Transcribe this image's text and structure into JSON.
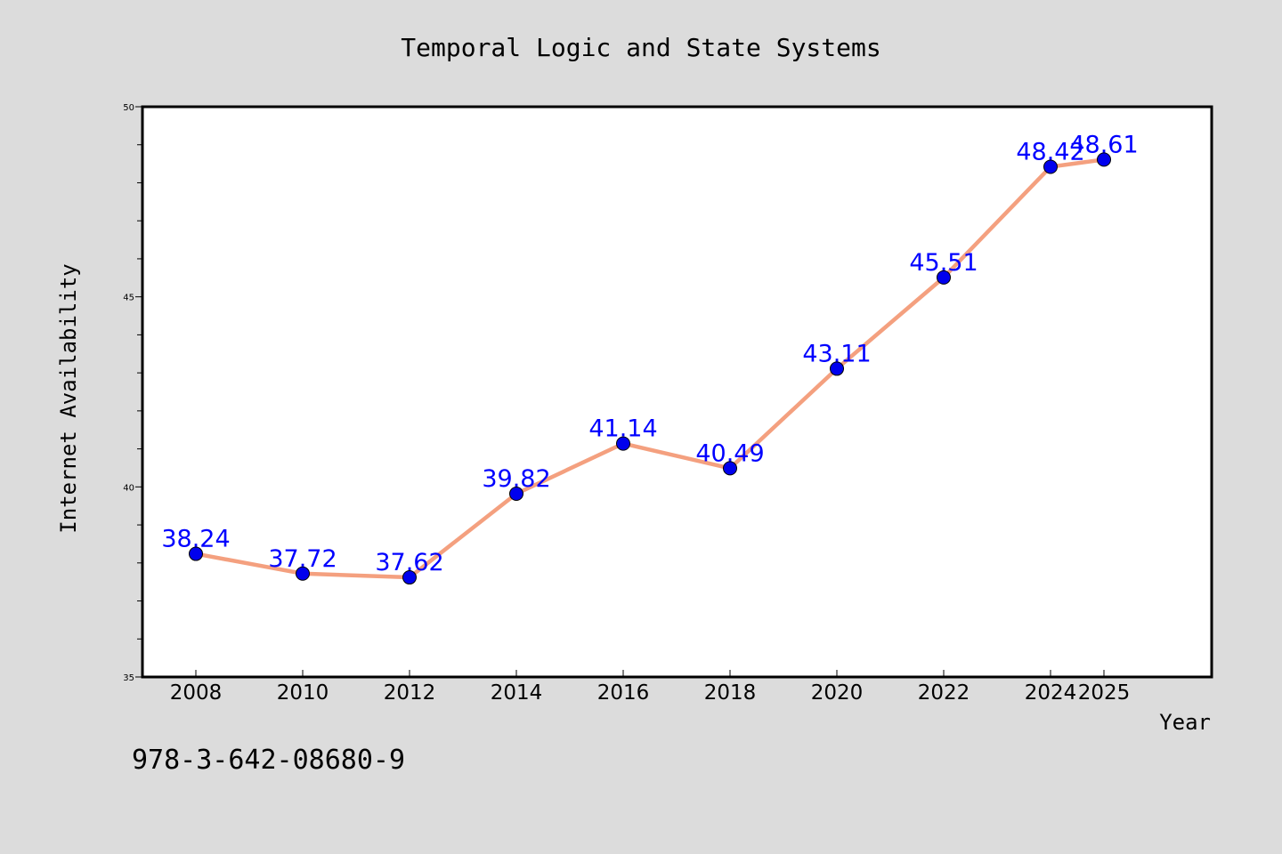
{
  "chart_data": {
    "type": "line",
    "title": "Temporal Logic and State Systems",
    "xlabel": "Year",
    "ylabel": "Internet Availability",
    "categories": [
      "2008",
      "2010",
      "2012",
      "2014",
      "2016",
      "2018",
      "2020",
      "2022",
      "2024",
      "2025"
    ],
    "series": [
      {
        "values": [
          38.24,
          37.72,
          37.62,
          39.82,
          41.14,
          40.49,
          43.11,
          45.51,
          48.42,
          48.61
        ]
      }
    ],
    "data_labels": [
      "38.24",
      "37.72",
      "37.62",
      "39.82",
      "41.14",
      "40.49",
      "43.11",
      "45.51",
      "48.42",
      "48.61"
    ],
    "ylim": [
      35,
      50
    ],
    "y_ticks": [
      "35",
      "40",
      "45",
      "50"
    ],
    "grid": false,
    "line_color": "#f4a07f",
    "marker_color": "#0000ee",
    "label_color": "#0000ff",
    "background_color": "#dcdcdc",
    "plot_background": "#ffffff"
  },
  "footer": {
    "isbn": "978-3-642-08680-9"
  }
}
